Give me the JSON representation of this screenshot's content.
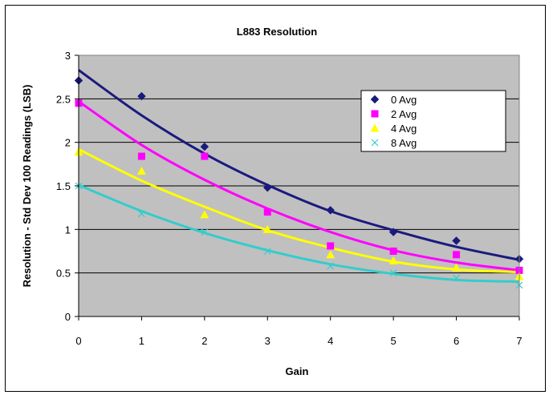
{
  "chart_data": {
    "type": "scatter",
    "title": "L883 Resolution",
    "xlabel": "Gain",
    "ylabel": "Resolution - Std Dev 100 Readings (LSB)",
    "xlim": [
      0,
      7
    ],
    "ylim": [
      0,
      3
    ],
    "x_ticks": [
      "0",
      "1",
      "2",
      "3",
      "4",
      "5",
      "6",
      "7"
    ],
    "y_ticks": [
      "0",
      "0.5",
      "1",
      "1.5",
      "2",
      "2.5",
      "3"
    ],
    "grid": "horizontal",
    "legend_position": "right",
    "trendline": "polynomial",
    "series": [
      {
        "name": "0 Avg",
        "marker": "diamond",
        "color": "#1a1a7e",
        "x": [
          0,
          1,
          2,
          3,
          4,
          5,
          6,
          7
        ],
        "values": [
          2.71,
          2.53,
          1.95,
          1.48,
          1.22,
          0.97,
          0.87,
          0.66
        ],
        "trend": [
          2.83,
          2.31,
          1.87,
          1.51,
          1.21,
          0.99,
          0.8,
          0.65
        ]
      },
      {
        "name": "2 Avg",
        "marker": "square",
        "color": "#ff00ff",
        "x": [
          0,
          1,
          2,
          3,
          4,
          5,
          6,
          7
        ],
        "values": [
          2.45,
          1.84,
          1.84,
          1.2,
          0.81,
          0.75,
          0.71,
          0.53
        ],
        "trend": [
          2.47,
          1.97,
          1.57,
          1.24,
          0.97,
          0.76,
          0.62,
          0.53
        ]
      },
      {
        "name": "4 Avg",
        "marker": "triangle",
        "color": "#ffff00",
        "x": [
          0,
          1,
          2,
          3,
          4,
          5,
          6,
          7
        ],
        "values": [
          1.89,
          1.67,
          1.17,
          1.0,
          0.71,
          0.64,
          0.56,
          0.46
        ],
        "trend": [
          1.92,
          1.56,
          1.26,
          0.99,
          0.79,
          0.63,
          0.54,
          0.51
        ]
      },
      {
        "name": "8 Avg",
        "marker": "x",
        "color": "#33cccc",
        "x": [
          0,
          1,
          2,
          3,
          4,
          5,
          6,
          7
        ],
        "values": [
          1.5,
          1.18,
          0.97,
          0.75,
          0.58,
          0.5,
          0.44,
          0.36
        ],
        "trend": [
          1.51,
          1.21,
          0.96,
          0.76,
          0.6,
          0.49,
          0.42,
          0.4
        ]
      }
    ]
  },
  "colors": {
    "plot_background": "#c0c0c0",
    "gridline": "#000000"
  }
}
